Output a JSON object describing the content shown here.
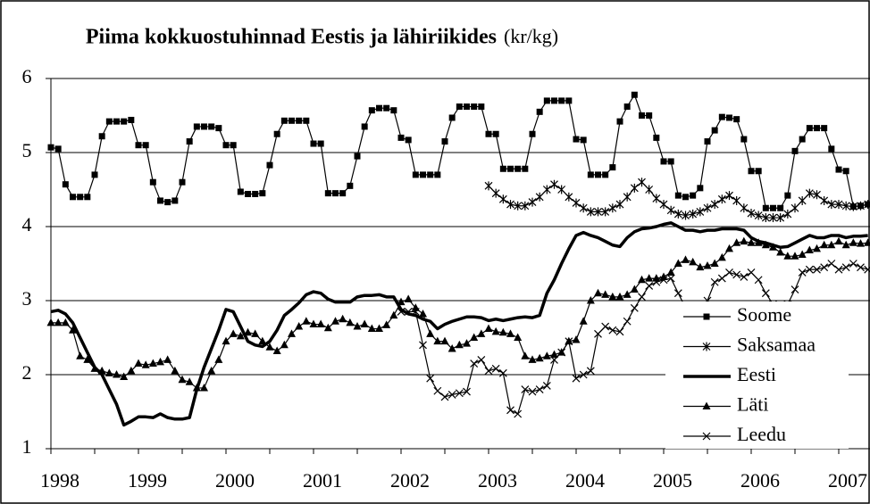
{
  "chart_data": {
    "type": "line",
    "title": "Piima kokkuostuhinnad Eestis ja lähiriikides",
    "unit_label": "(kr/kg)",
    "categories": [
      "1998",
      null,
      null,
      null,
      null,
      null,
      null,
      null,
      null,
      null,
      null,
      null,
      "1999",
      null,
      null,
      null,
      null,
      null,
      null,
      null,
      null,
      null,
      null,
      null,
      "2000",
      null,
      null,
      null,
      null,
      null,
      null,
      null,
      null,
      null,
      null,
      null,
      "2001",
      null,
      null,
      null,
      null,
      null,
      null,
      null,
      null,
      null,
      null,
      null,
      "2002",
      null,
      null,
      null,
      null,
      null,
      null,
      null,
      null,
      null,
      null,
      null,
      "2003",
      null,
      null,
      null,
      null,
      null,
      null,
      null,
      null,
      null,
      null,
      null,
      "2004",
      null,
      null,
      null,
      null,
      null,
      null,
      null,
      null,
      null,
      null,
      null,
      "2005",
      null,
      null,
      null,
      null,
      null,
      null,
      null,
      null,
      null,
      null,
      null,
      "2006",
      null,
      null,
      null,
      null,
      null,
      null,
      null,
      null,
      null,
      null,
      null,
      "2007",
      null,
      null,
      null,
      null
    ],
    "ylim": [
      1,
      6
    ],
    "yticks": [
      1,
      2,
      3,
      4,
      5,
      6
    ],
    "grid": true,
    "legend": "lower right",
    "series": [
      {
        "name": "Soome",
        "color": "#000000",
        "marker": "square",
        "line_width": 1.2,
        "values": [
          5.07,
          5.05,
          4.57,
          4.4,
          4.4,
          4.4,
          4.7,
          5.22,
          5.42,
          5.42,
          5.42,
          5.44,
          5.1,
          5.1,
          4.6,
          4.35,
          4.33,
          4.35,
          4.6,
          5.15,
          5.35,
          5.35,
          5.35,
          5.33,
          5.1,
          5.1,
          4.47,
          4.44,
          4.44,
          4.45,
          4.83,
          5.25,
          5.43,
          5.43,
          5.43,
          5.43,
          5.12,
          5.12,
          4.45,
          4.45,
          4.45,
          4.55,
          4.95,
          5.35,
          5.57,
          5.6,
          5.6,
          5.57,
          5.2,
          5.17,
          4.7,
          4.7,
          4.7,
          4.7,
          5.15,
          5.47,
          5.62,
          5.62,
          5.62,
          5.62,
          5.25,
          5.25,
          4.78,
          4.78,
          4.78,
          4.78,
          5.25,
          5.55,
          5.7,
          5.7,
          5.7,
          5.7,
          5.18,
          5.17,
          4.7,
          4.7,
          4.7,
          4.8,
          5.42,
          5.62,
          5.78,
          5.5,
          5.5,
          5.2,
          4.88,
          4.88,
          4.42,
          4.4,
          4.42,
          4.52,
          5.15,
          5.3,
          5.48,
          5.47,
          5.45,
          5.18,
          4.75,
          4.75,
          4.25,
          4.25,
          4.25,
          4.42,
          5.02,
          5.18,
          5.33,
          5.33,
          5.33,
          5.05,
          4.77,
          4.75,
          4.27,
          4.28,
          4.3
        ]
      },
      {
        "name": "Saksamaa",
        "color": "#000000",
        "marker": "asterisk",
        "line_width": 1.2,
        "values": [
          null,
          null,
          null,
          null,
          null,
          null,
          null,
          null,
          null,
          null,
          null,
          null,
          null,
          null,
          null,
          null,
          null,
          null,
          null,
          null,
          null,
          null,
          null,
          null,
          null,
          null,
          null,
          null,
          null,
          null,
          null,
          null,
          null,
          null,
          null,
          null,
          null,
          null,
          null,
          null,
          null,
          null,
          null,
          null,
          null,
          null,
          null,
          null,
          null,
          null,
          null,
          null,
          null,
          null,
          null,
          null,
          null,
          null,
          null,
          null,
          4.55,
          4.45,
          4.37,
          4.3,
          4.28,
          4.28,
          4.33,
          4.4,
          4.5,
          4.57,
          4.5,
          4.4,
          4.32,
          4.25,
          4.2,
          4.2,
          4.2,
          4.25,
          4.3,
          4.4,
          4.52,
          4.6,
          4.5,
          4.38,
          4.3,
          4.22,
          4.17,
          4.15,
          4.17,
          4.2,
          4.25,
          4.3,
          4.37,
          4.42,
          4.35,
          4.25,
          4.18,
          4.15,
          4.12,
          4.12,
          4.12,
          4.17,
          4.25,
          4.35,
          4.45,
          4.43,
          4.35,
          4.3,
          4.3,
          4.28,
          4.27,
          4.28,
          4.3
        ]
      },
      {
        "name": "Eesti",
        "color": "#000000",
        "marker": "none",
        "line_width": 3.5,
        "values": [
          2.85,
          2.87,
          2.82,
          2.7,
          2.5,
          2.3,
          2.1,
          2.0,
          1.8,
          1.6,
          1.32,
          1.37,
          1.43,
          1.43,
          1.42,
          1.47,
          1.42,
          1.4,
          1.4,
          1.42,
          1.8,
          2.1,
          2.35,
          2.6,
          2.88,
          2.85,
          2.65,
          2.45,
          2.4,
          2.38,
          2.45,
          2.6,
          2.8,
          2.88,
          2.97,
          3.08,
          3.12,
          3.1,
          3.02,
          2.98,
          2.98,
          2.98,
          3.05,
          3.07,
          3.07,
          3.08,
          3.05,
          3.05,
          2.88,
          2.82,
          2.8,
          2.75,
          2.72,
          2.62,
          2.68,
          2.72,
          2.75,
          2.78,
          2.78,
          2.77,
          2.73,
          2.75,
          2.73,
          2.75,
          2.77,
          2.78,
          2.77,
          2.8,
          3.1,
          3.28,
          3.5,
          3.7,
          3.88,
          3.92,
          3.88,
          3.85,
          3.8,
          3.75,
          3.73,
          3.85,
          3.93,
          3.97,
          3.98,
          4.0,
          4.03,
          4.05,
          4.0,
          3.95,
          3.95,
          3.93,
          3.95,
          3.95,
          3.97,
          3.97,
          3.97,
          3.95,
          3.85,
          3.8,
          3.78,
          3.75,
          3.72,
          3.73,
          3.78,
          3.83,
          3.88,
          3.85,
          3.85,
          3.88,
          3.88,
          3.85,
          3.87,
          3.87,
          3.88
        ]
      },
      {
        "name": "Läti",
        "color": "#000000",
        "marker": "triangle",
        "line_width": 1.2,
        "values": [
          2.7,
          2.7,
          2.7,
          2.6,
          2.25,
          2.2,
          2.08,
          2.05,
          2.02,
          2.0,
          1.97,
          2.05,
          2.15,
          2.13,
          2.15,
          2.17,
          2.2,
          2.05,
          1.93,
          1.9,
          1.82,
          1.82,
          2.05,
          2.2,
          2.45,
          2.55,
          2.52,
          2.57,
          2.55,
          2.45,
          2.37,
          2.32,
          2.4,
          2.55,
          2.65,
          2.72,
          2.68,
          2.68,
          2.63,
          2.72,
          2.75,
          2.7,
          2.65,
          2.68,
          2.62,
          2.62,
          2.67,
          2.8,
          2.98,
          3.02,
          2.9,
          2.82,
          2.55,
          2.45,
          2.45,
          2.35,
          2.4,
          2.42,
          2.5,
          2.55,
          2.62,
          2.58,
          2.57,
          2.55,
          2.5,
          2.25,
          2.2,
          2.22,
          2.25,
          2.27,
          2.3,
          2.45,
          2.47,
          2.72,
          3.0,
          3.1,
          3.08,
          3.05,
          3.05,
          3.08,
          3.15,
          3.28,
          3.3,
          3.3,
          3.32,
          3.38,
          3.5,
          3.55,
          3.52,
          3.45,
          3.47,
          3.5,
          3.58,
          3.7,
          3.78,
          3.8,
          3.78,
          3.78,
          3.75,
          3.72,
          3.65,
          3.6,
          3.6,
          3.62,
          3.68,
          3.7,
          3.75,
          3.75,
          3.8,
          3.75,
          3.78,
          3.77,
          3.78
        ]
      },
      {
        "name": "Leedu",
        "color": "#000000",
        "marker": "x",
        "line_width": 1.2,
        "values": [
          null,
          null,
          null,
          null,
          null,
          null,
          null,
          null,
          null,
          null,
          null,
          null,
          null,
          null,
          null,
          null,
          null,
          null,
          null,
          null,
          null,
          null,
          null,
          null,
          null,
          null,
          null,
          null,
          null,
          null,
          null,
          null,
          null,
          null,
          null,
          null,
          null,
          null,
          null,
          null,
          null,
          null,
          null,
          null,
          null,
          null,
          null,
          null,
          2.85,
          2.85,
          2.85,
          2.4,
          1.95,
          1.78,
          1.7,
          1.73,
          1.75,
          1.77,
          2.15,
          2.2,
          2.05,
          2.08,
          2.02,
          1.52,
          1.47,
          1.8,
          1.77,
          1.8,
          1.85,
          2.2,
          2.3,
          2.45,
          1.95,
          2.0,
          2.05,
          2.55,
          2.65,
          2.6,
          2.58,
          2.72,
          2.9,
          3.05,
          3.2,
          3.25,
          3.28,
          3.3,
          3.1,
          2.9,
          2.78,
          2.85,
          3.0,
          3.25,
          3.3,
          3.38,
          3.35,
          3.32,
          3.38,
          3.28,
          3.1,
          2.95,
          2.85,
          2.95,
          3.15,
          3.38,
          3.42,
          3.42,
          3.45,
          3.5,
          3.42,
          3.45,
          3.5,
          3.45,
          3.42
        ]
      }
    ]
  }
}
